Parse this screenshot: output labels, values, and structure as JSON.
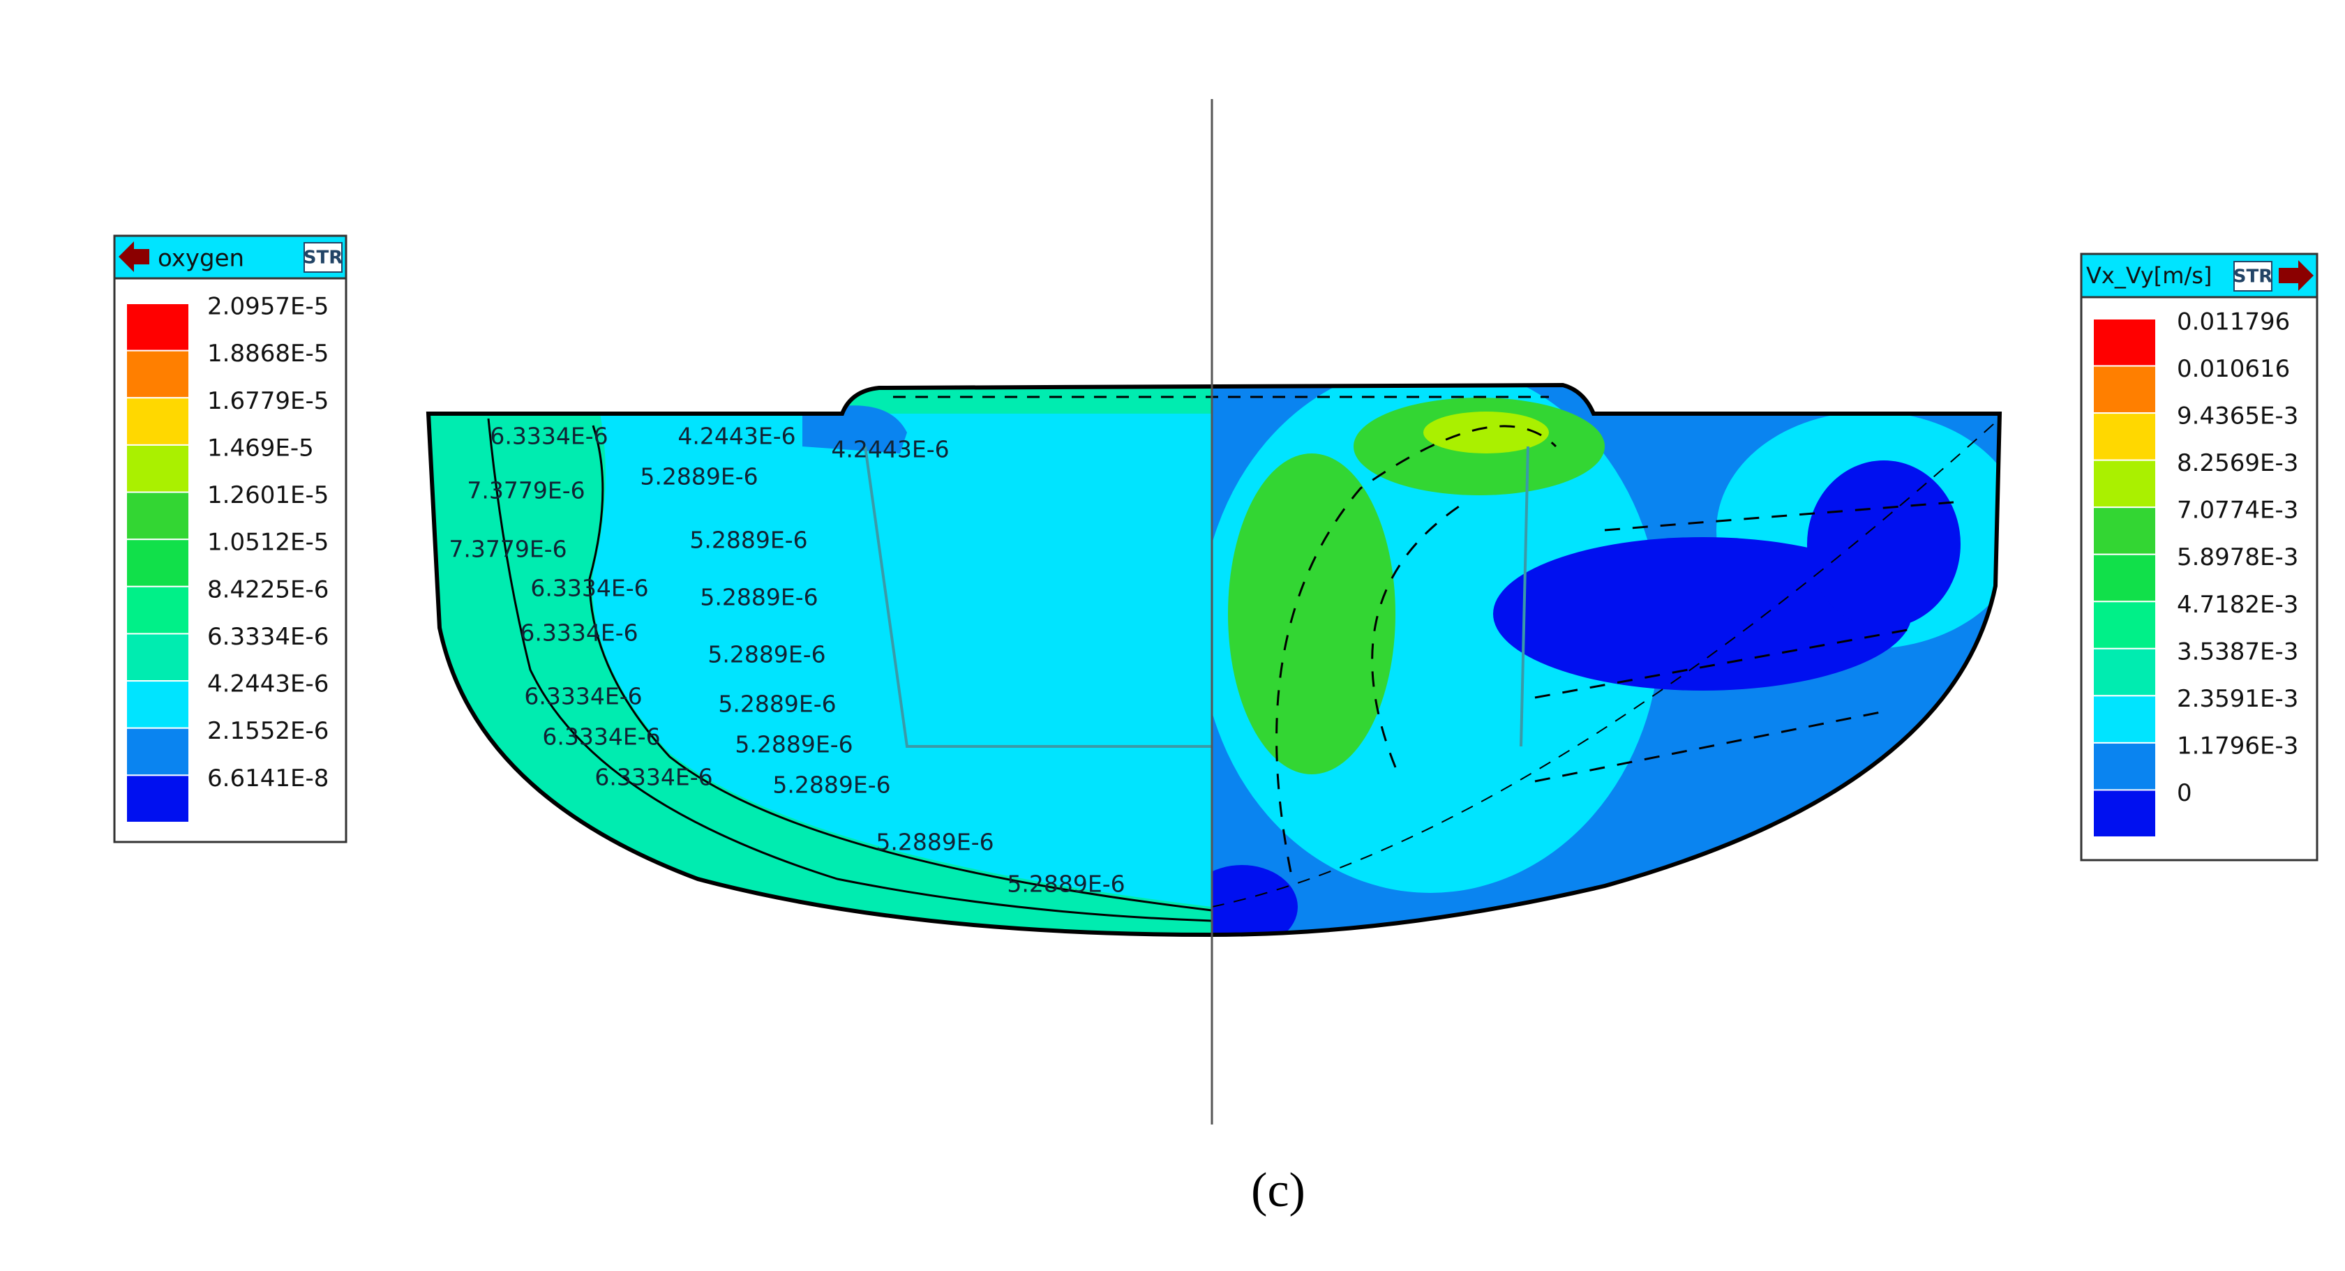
{
  "left_legend": {
    "title": "oxygen",
    "badge": "STR",
    "labels": [
      "2.0957E-5",
      "1.8868E-5",
      "1.6779E-5",
      "1.469E-5",
      "1.2601E-5",
      "1.0512E-5",
      "8.4225E-6",
      "6.3334E-6",
      "4.2443E-6",
      "2.1552E-6",
      "6.6141E-8"
    ],
    "colors": [
      "#ff0000",
      "#ff7f00",
      "#ffd800",
      "#aaf000",
      "#33d633",
      "#11e04a",
      "#00f088",
      "#00ecb0",
      "#00e4ff",
      "#0a84f0",
      "#0010f0"
    ]
  },
  "right_legend": {
    "title": "Vx_Vy[m/s]",
    "badge": "STR",
    "labels": [
      "0.011796",
      "0.010616",
      "9.4365E-3",
      "8.2569E-3",
      "7.0774E-3",
      "5.8978E-3",
      "4.7182E-3",
      "3.5387E-3",
      "2.3591E-3",
      "1.1796E-3",
      "0"
    ],
    "colors": [
      "#ff0000",
      "#ff7f00",
      "#ffd800",
      "#aaf000",
      "#33d633",
      "#11e04a",
      "#00f088",
      "#00ecb0",
      "#00e4ff",
      "#0a84f0",
      "#0010f0"
    ]
  },
  "contour_labels": [
    "6.3334E-6",
    "4.2443E-6",
    "4.2443E-6",
    "5.2889E-6",
    "7.3779E-6",
    "5.2889E-6",
    "7.3779E-6",
    "6.3334E-6",
    "5.2889E-6",
    "6.3334E-6",
    "5.2889E-6",
    "6.3334E-6",
    "5.2889E-6",
    "6.3334E-6",
    "5.2889E-6",
    "6.3334E-6",
    "5.2889E-6",
    "5.2889E-6",
    "5.2889E-6"
  ],
  "caption": "(c)"
}
